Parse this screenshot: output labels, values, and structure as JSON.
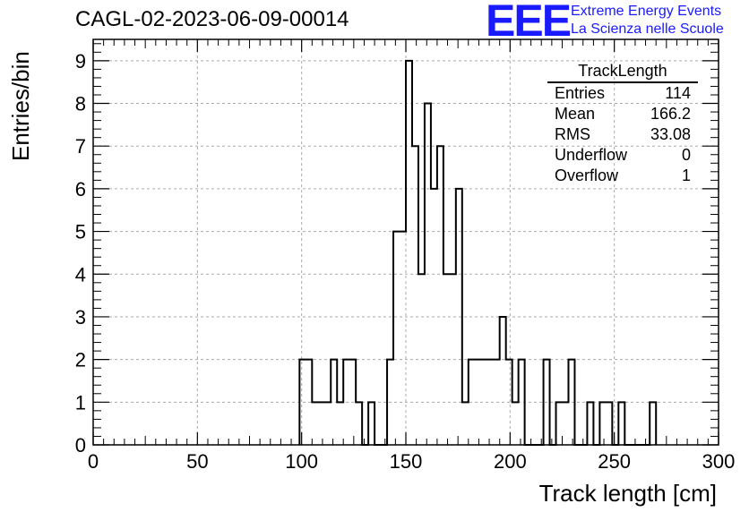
{
  "header": {
    "title": "CAGL-02-2023-06-09-00014",
    "logo": "EEE",
    "logo_line1": "Extreme Energy Events",
    "logo_line2": "La Scienza nelle Scuole"
  },
  "stats_box": {
    "title": "TrackLength",
    "rows": [
      {
        "label": "Entries",
        "value": "114"
      },
      {
        "label": "Mean",
        "value": "166.2"
      },
      {
        "label": "RMS",
        "value": "33.08"
      },
      {
        "label": "Underflow",
        "value": "0"
      },
      {
        "label": "Overflow",
        "value": "1"
      }
    ]
  },
  "chart_data": {
    "type": "histogram",
    "xlabel": "Track length [cm]",
    "ylabel": "Entries/bin",
    "xlim": [
      0,
      300
    ],
    "ylim": [
      0,
      9.5
    ],
    "bin_width": 3,
    "grid": true,
    "x_ticks": [
      0,
      50,
      100,
      150,
      200,
      250,
      300
    ],
    "y_ticks": [
      0,
      1,
      2,
      3,
      4,
      5,
      6,
      7,
      8,
      9
    ],
    "bins": [
      {
        "x": 99,
        "count": 2
      },
      {
        "x": 102,
        "count": 2
      },
      {
        "x": 105,
        "count": 1
      },
      {
        "x": 108,
        "count": 1
      },
      {
        "x": 111,
        "count": 1
      },
      {
        "x": 114,
        "count": 2
      },
      {
        "x": 117,
        "count": 1
      },
      {
        "x": 120,
        "count": 2
      },
      {
        "x": 123,
        "count": 2
      },
      {
        "x": 126,
        "count": 1
      },
      {
        "x": 129,
        "count": 0
      },
      {
        "x": 132,
        "count": 1
      },
      {
        "x": 135,
        "count": 0
      },
      {
        "x": 138,
        "count": 0
      },
      {
        "x": 141,
        "count": 2
      },
      {
        "x": 144,
        "count": 5
      },
      {
        "x": 147,
        "count": 5
      },
      {
        "x": 150,
        "count": 9
      },
      {
        "x": 153,
        "count": 7
      },
      {
        "x": 156,
        "count": 4
      },
      {
        "x": 159,
        "count": 8
      },
      {
        "x": 162,
        "count": 6
      },
      {
        "x": 165,
        "count": 7
      },
      {
        "x": 168,
        "count": 4
      },
      {
        "x": 171,
        "count": 4
      },
      {
        "x": 174,
        "count": 6
      },
      {
        "x": 177,
        "count": 1
      },
      {
        "x": 180,
        "count": 2
      },
      {
        "x": 183,
        "count": 2
      },
      {
        "x": 186,
        "count": 2
      },
      {
        "x": 189,
        "count": 2
      },
      {
        "x": 192,
        "count": 2
      },
      {
        "x": 195,
        "count": 3
      },
      {
        "x": 198,
        "count": 2
      },
      {
        "x": 201,
        "count": 1
      },
      {
        "x": 204,
        "count": 2
      },
      {
        "x": 207,
        "count": 0
      },
      {
        "x": 210,
        "count": 0
      },
      {
        "x": 213,
        "count": 0
      },
      {
        "x": 216,
        "count": 2
      },
      {
        "x": 219,
        "count": 0
      },
      {
        "x": 222,
        "count": 1
      },
      {
        "x": 225,
        "count": 1
      },
      {
        "x": 228,
        "count": 2
      },
      {
        "x": 231,
        "count": 0
      },
      {
        "x": 234,
        "count": 0
      },
      {
        "x": 237,
        "count": 1
      },
      {
        "x": 240,
        "count": 0
      },
      {
        "x": 243,
        "count": 1
      },
      {
        "x": 246,
        "count": 1
      },
      {
        "x": 249,
        "count": 0
      },
      {
        "x": 252,
        "count": 1
      },
      {
        "x": 255,
        "count": 0
      },
      {
        "x": 258,
        "count": 0
      },
      {
        "x": 261,
        "count": 0
      },
      {
        "x": 264,
        "count": 0
      },
      {
        "x": 267,
        "count": 1
      }
    ]
  }
}
